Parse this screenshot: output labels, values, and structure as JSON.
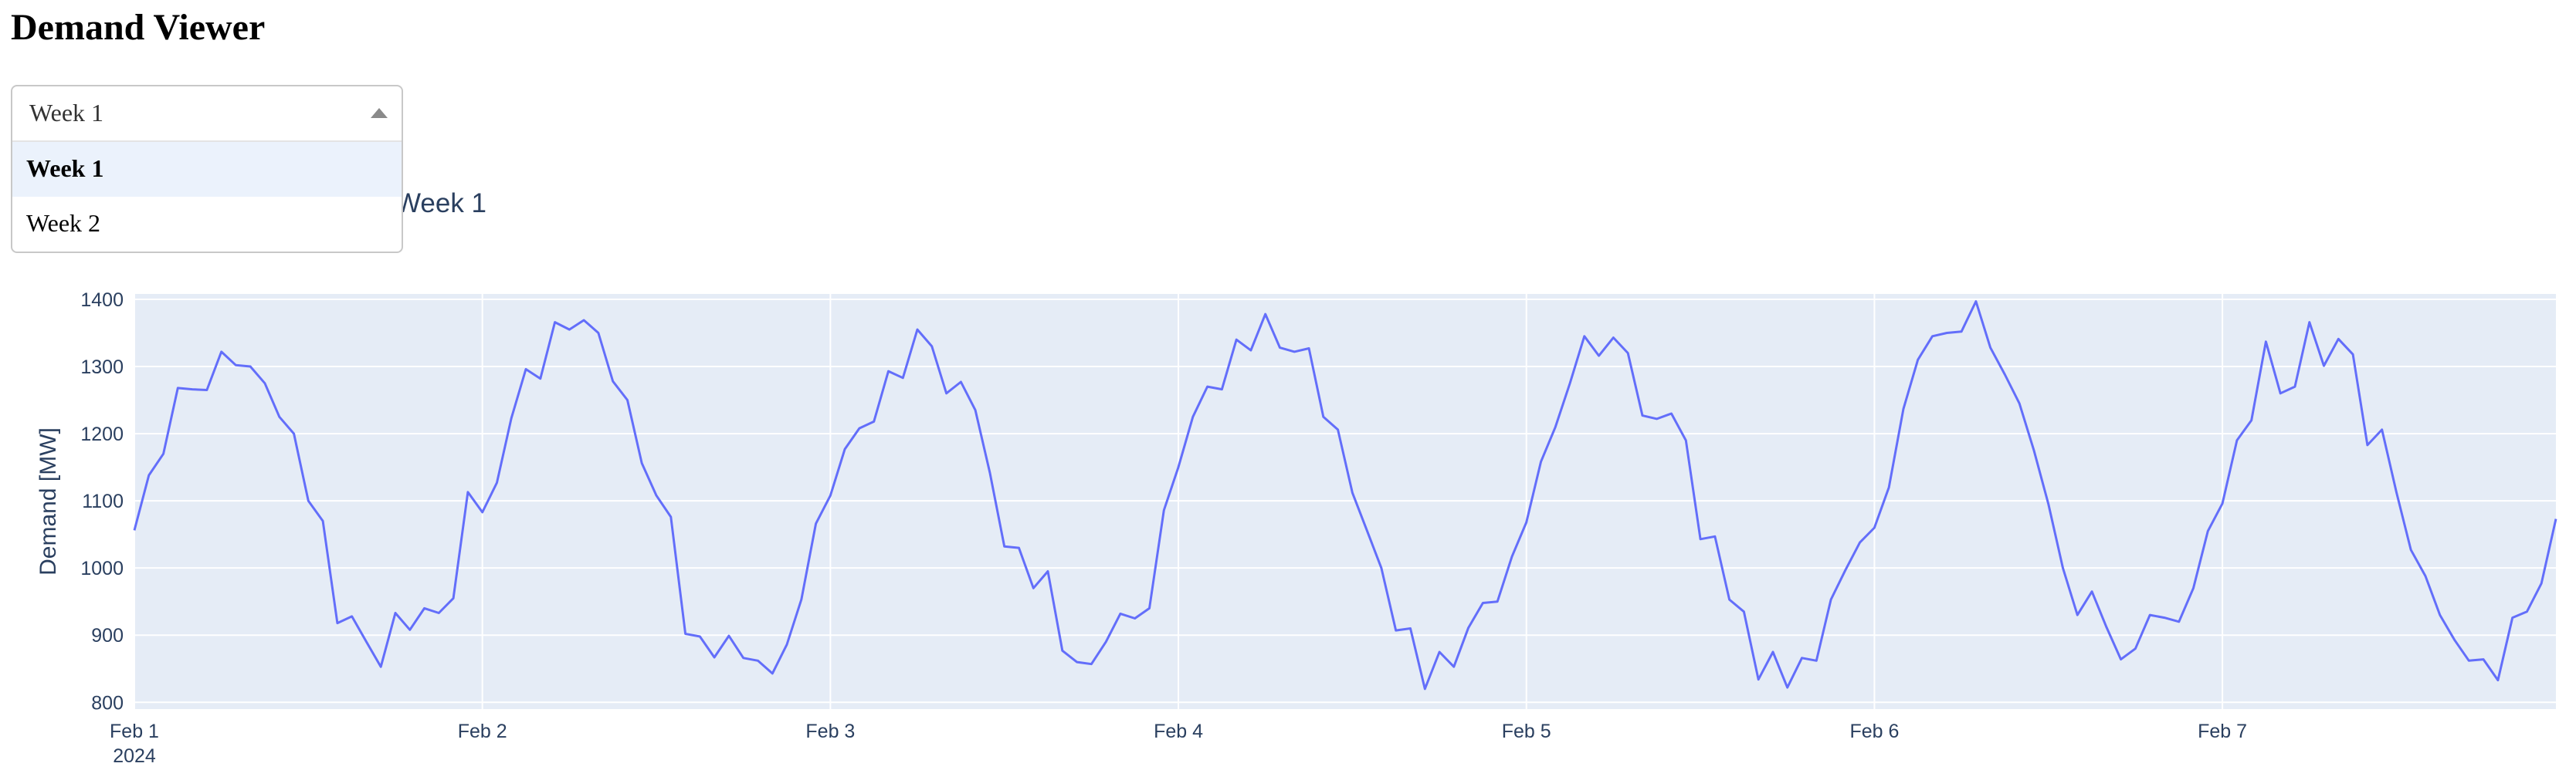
{
  "page": {
    "title": "Demand Viewer"
  },
  "dropdown": {
    "selected": "Week 1",
    "options": [
      "Week 1",
      "Week 2"
    ]
  },
  "chart_data": {
    "type": "line",
    "title": "Week 1",
    "xlabel": "",
    "ylabel": "Demand [MW]",
    "ylim": [
      790,
      1408
    ],
    "yticks": [
      800,
      900,
      1000,
      1100,
      1200,
      1300,
      1400
    ],
    "xlim": [
      "2024-02-01 00:00",
      "2024-02-07 23:00"
    ],
    "xticks": [
      {
        "value": "2024-02-01",
        "label": "Feb 1",
        "sublabel": "2024"
      },
      {
        "value": "2024-02-02",
        "label": "Feb 2"
      },
      {
        "value": "2024-02-03",
        "label": "Feb 3"
      },
      {
        "value": "2024-02-04",
        "label": "Feb 4"
      },
      {
        "value": "2024-02-05",
        "label": "Feb 5"
      },
      {
        "value": "2024-02-06",
        "label": "Feb 6"
      },
      {
        "value": "2024-02-07",
        "label": "Feb 7"
      }
    ],
    "grid": true,
    "colors": {
      "line": "#636efa",
      "plot_bg": "#e5ecf6",
      "grid": "#ffffff"
    },
    "series": [
      {
        "x_start": "2024-02-01 00:00",
        "x_step": "1 hour",
        "values": [
          1056,
          1138,
          1170,
          1268,
          1266,
          1265,
          1322,
          1302,
          1300,
          1275,
          1225,
          1200,
          1100,
          1070,
          918,
          928,
          890,
          853,
          933,
          908,
          940,
          933,
          955,
          1113,
          1083,
          1127,
          1223,
          1296,
          1282,
          1366,
          1355,
          1369,
          1350,
          1278,
          1250,
          1156,
          1108,
          1076,
          902,
          898,
          867,
          899,
          866,
          862,
          843,
          886,
          953,
          1066,
          1108,
          1177,
          1208,
          1218,
          1293,
          1283,
          1355,
          1330,
          1260,
          1277,
          1235,
          1142,
          1032,
          1030,
          970,
          995,
          877,
          860,
          857,
          890,
          932,
          925,
          940,
          1086,
          1150,
          1225,
          1270,
          1266,
          1340,
          1324,
          1378,
          1328,
          1322,
          1327,
          1225,
          1206,
          1112,
          1056,
          1000,
          907,
          910,
          820,
          875,
          853,
          911,
          948,
          950,
          1017,
          1068,
          1158,
          1210,
          1275,
          1345,
          1316,
          1343,
          1320,
          1227,
          1222,
          1230,
          1190,
          1043,
          1047,
          953,
          935,
          834,
          875,
          822,
          866,
          862,
          953,
          997,
          1038,
          1060,
          1120,
          1237,
          1310,
          1345,
          1350,
          1352,
          1397,
          1328,
          1288,
          1245,
          1175,
          1095,
          1000,
          930,
          965,
          912,
          864,
          880,
          930,
          926,
          920,
          970,
          1055,
          1096,
          1190,
          1220,
          1337,
          1260,
          1270,
          1366,
          1301,
          1341,
          1318,
          1183,
          1206,
          1113,
          1027,
          988,
          930,
          893,
          862,
          864,
          833,
          926,
          935,
          977,
          1073
        ]
      }
    ]
  }
}
